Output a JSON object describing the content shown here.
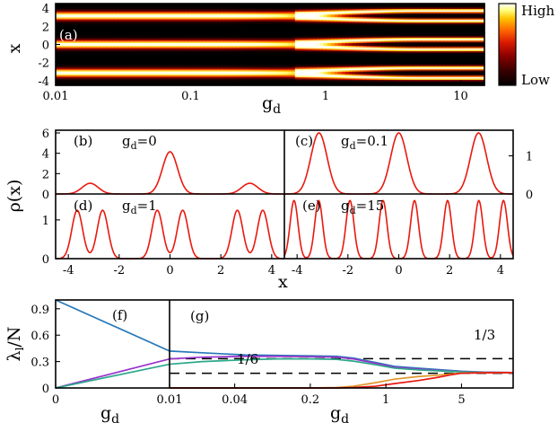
{
  "chart_data": [
    {
      "panel": "a",
      "type": "heatmap",
      "label": "(a)",
      "xlabel": "g",
      "xlabel_sub": "d",
      "ylabel": "x",
      "xscale": "log",
      "xlim": [
        0.01,
        15
      ],
      "ylim": [
        -4.5,
        4.5
      ],
      "xticks": [
        {
          "v": 0.01,
          "t": "0.01"
        },
        {
          "v": 0.1,
          "t": "0.1"
        },
        {
          "v": 1,
          "t": "1"
        },
        {
          "v": 10,
          "t": "10"
        }
      ],
      "yticks": [
        {
          "v": 4,
          "t": "4"
        },
        {
          "v": 2,
          "t": "2"
        },
        {
          "v": 0,
          "t": "0"
        },
        {
          "v": -2,
          "t": "-2"
        },
        {
          "v": -4,
          "t": "-4"
        }
      ],
      "colorbar": {
        "high": "High",
        "low": "Low",
        "colors": [
          "#000000",
          "#3a0000",
          "#8a0000",
          "#d81800",
          "#ff6a00",
          "#ffc400",
          "#ffff80",
          "#ffffff"
        ]
      },
      "peaks_low_gd": [
        -3.14,
        0,
        3.14
      ],
      "peaks_high_gd": [
        -3.7,
        -2.6,
        -0.55,
        0.55,
        2.6,
        3.7
      ],
      "split_gd": 0.9
    },
    {
      "panel": "b",
      "type": "line",
      "label": "(b)",
      "g_label": "g",
      "g_sub": "d",
      "g_value": "=0",
      "ylabel": "ρ(x)",
      "xlim": [
        -4.5,
        4.5
      ],
      "ylim": [
        0,
        6
      ],
      "yticks": [
        {
          "v": 0,
          "t": "0"
        },
        {
          "v": 2,
          "t": "2"
        },
        {
          "v": 4,
          "t": "4"
        },
        {
          "v": 6,
          "t": "6"
        }
      ],
      "series": [
        {
          "name": "density",
          "color": "#e8190f",
          "peaks": [
            {
              "x": -3.14,
              "h": 1.05,
              "w": 0.45
            },
            {
              "x": 0,
              "h": 4.15,
              "w": 0.42
            },
            {
              "x": 3.14,
              "h": 1.05,
              "w": 0.45
            }
          ]
        }
      ]
    },
    {
      "panel": "c",
      "type": "line",
      "label": "(c)",
      "g_label": "g",
      "g_sub": "d",
      "g_value": "=0.1",
      "xlim": [
        -4.5,
        4.5
      ],
      "ylim": [
        0,
        1.6
      ],
      "yticks_right": [
        {
          "v": 0,
          "t": "0"
        },
        {
          "v": 1,
          "t": "1"
        }
      ],
      "series": [
        {
          "name": "density",
          "color": "#e8190f",
          "peaks": [
            {
              "x": -3.14,
              "h": 1.6,
              "w": 0.45
            },
            {
              "x": 0,
              "h": 1.6,
              "w": 0.45
            },
            {
              "x": 3.14,
              "h": 1.6,
              "w": 0.45
            }
          ]
        }
      ]
    },
    {
      "panel": "d",
      "type": "line",
      "label": "(d)",
      "g_label": "g",
      "g_sub": "d",
      "g_value": "=1",
      "xlim": [
        -4.5,
        4.5
      ],
      "ylim": [
        0,
        1.6
      ],
      "yticks": [
        {
          "v": 0,
          "t": "0"
        },
        {
          "v": 1,
          "t": "1"
        }
      ],
      "xticks": [
        {
          "v": -4,
          "t": "-4"
        },
        {
          "v": -2,
          "t": "-2"
        },
        {
          "v": 0,
          "t": "0"
        },
        {
          "v": 2,
          "t": "2"
        },
        {
          "v": 4,
          "t": "4"
        }
      ],
      "series": [
        {
          "name": "density",
          "color": "#e8190f",
          "peaks": [
            {
              "x": -3.65,
              "h": 1.25,
              "w": 0.3
            },
            {
              "x": -2.65,
              "h": 1.25,
              "w": 0.3
            },
            {
              "x": -0.5,
              "h": 1.25,
              "w": 0.3
            },
            {
              "x": 0.5,
              "h": 1.25,
              "w": 0.3
            },
            {
              "x": 2.65,
              "h": 1.25,
              "w": 0.3
            },
            {
              "x": 3.65,
              "h": 1.25,
              "w": 0.3
            }
          ]
        }
      ]
    },
    {
      "panel": "e",
      "type": "line",
      "label": "(e)",
      "g_label": "g",
      "g_sub": "d",
      "g_value": "=15",
      "xlim": [
        -4.5,
        4.5
      ],
      "ylim": [
        0,
        1.6
      ],
      "xticks": [
        {
          "v": -4,
          "t": "-4"
        },
        {
          "v": -2,
          "t": "-2"
        },
        {
          "v": 0,
          "t": "0"
        },
        {
          "v": 2,
          "t": "2"
        },
        {
          "v": 4,
          "t": "4"
        }
      ],
      "series": [
        {
          "name": "density",
          "color": "#e8190f",
          "peaks": [
            {
              "x": -4.12,
              "h": 1.5,
              "w": 0.22
            },
            {
              "x": -3.15,
              "h": 1.5,
              "w": 0.22
            },
            {
              "x": -1.92,
              "h": 1.5,
              "w": 0.22
            },
            {
              "x": -0.62,
              "h": 1.5,
              "w": 0.22
            },
            {
              "x": 0.62,
              "h": 1.5,
              "w": 0.22
            },
            {
              "x": 1.92,
              "h": 1.5,
              "w": 0.22
            },
            {
              "x": 3.15,
              "h": 1.5,
              "w": 0.22
            },
            {
              "x": 4.12,
              "h": 1.5,
              "w": 0.22
            }
          ]
        }
      ]
    },
    {
      "panel": "f",
      "type": "line",
      "label": "(f)",
      "ylabel": "λ",
      "ylabel_sub": "l",
      "ylabel_tail": "/N",
      "xlabel": "g",
      "xlabel_sub": "d",
      "xlim": [
        0,
        0.01
      ],
      "ylim": [
        0,
        1
      ],
      "xticks": [
        {
          "v": 0,
          "t": "0"
        },
        {
          "v": 0.01,
          "t": "0.01"
        }
      ],
      "yticks": [
        {
          "v": 0,
          "t": "0"
        },
        {
          "v": 0.3,
          "t": "0.3"
        },
        {
          "v": 0.6,
          "t": "0.6"
        },
        {
          "v": 0.9,
          "t": "0.9"
        }
      ],
      "series": [
        {
          "name": "lambda1",
          "color": "#2878b8",
          "x": [
            0,
            0.01
          ],
          "y": [
            1.0,
            0.42
          ]
        },
        {
          "name": "lambda2",
          "color": "#9933cc",
          "x": [
            0,
            0.01
          ],
          "y": [
            0.0,
            0.33
          ]
        },
        {
          "name": "lambda3",
          "color": "#2ba88a",
          "x": [
            0,
            0.01
          ],
          "y": [
            0.0,
            0.27
          ]
        }
      ]
    },
    {
      "panel": "g",
      "type": "line",
      "label": "(g)",
      "xlabel": "g",
      "xlabel_sub": "d",
      "xscale": "log",
      "xlim": [
        0.01,
        15
      ],
      "ylim": [
        0,
        1
      ],
      "xticks": [
        {
          "v": 0.01,
          "t": "0.01"
        },
        {
          "v": 0.04,
          "t": "0.04"
        },
        {
          "v": 0.2,
          "t": "0.2"
        },
        {
          "v": 1,
          "t": "1"
        },
        {
          "v": 5,
          "t": "5"
        }
      ],
      "annotations": [
        {
          "text": "1/3",
          "y": 0.333
        },
        {
          "text": "1/6",
          "y": 0.167
        }
      ],
      "reference_lines": [
        0.333,
        0.167
      ],
      "series": [
        {
          "name": "lambda1",
          "color": "#2878b8",
          "x": [
            0.01,
            0.02,
            0.05,
            0.1,
            0.2,
            0.35,
            0.5,
            0.8,
            1.2,
            2,
            3,
            5,
            8,
            15
          ],
          "y": [
            0.42,
            0.4,
            0.375,
            0.37,
            0.365,
            0.36,
            0.34,
            0.29,
            0.245,
            0.225,
            0.21,
            0.19,
            0.18,
            0.175
          ]
        },
        {
          "name": "lambda2",
          "color": "#9933cc",
          "x": [
            0.01,
            0.02,
            0.05,
            0.1,
            0.2,
            0.35,
            0.5,
            0.8,
            1.2,
            2,
            3,
            5,
            8,
            15
          ],
          "y": [
            0.33,
            0.35,
            0.36,
            0.36,
            0.355,
            0.35,
            0.33,
            0.28,
            0.235,
            0.215,
            0.2,
            0.185,
            0.178,
            0.175
          ]
        },
        {
          "name": "lambda3",
          "color": "#2ba88a",
          "x": [
            0.01,
            0.02,
            0.05,
            0.1,
            0.2,
            0.35,
            0.5,
            0.8,
            1.2,
            2,
            3,
            5,
            8,
            15
          ],
          "y": [
            0.27,
            0.3,
            0.32,
            0.33,
            0.33,
            0.325,
            0.305,
            0.265,
            0.225,
            0.205,
            0.195,
            0.182,
            0.176,
            0.175
          ]
        },
        {
          "name": "lambda4",
          "color": "#e0962c",
          "x": [
            0.01,
            0.2,
            0.35,
            0.5,
            0.8,
            1.2,
            2,
            3,
            4,
            5,
            8,
            15
          ],
          "y": [
            0.0,
            0.0,
            0.005,
            0.02,
            0.06,
            0.1,
            0.13,
            0.145,
            0.16,
            0.17,
            0.172,
            0.175
          ]
        },
        {
          "name": "lambda5",
          "color": "#e8190f",
          "x": [
            0.01,
            0.35,
            0.5,
            0.8,
            1.2,
            2,
            3,
            4,
            5,
            8,
            15
          ],
          "y": [
            0.0,
            0.0,
            0.005,
            0.02,
            0.05,
            0.085,
            0.12,
            0.15,
            0.168,
            0.172,
            0.175
          ]
        }
      ]
    }
  ]
}
